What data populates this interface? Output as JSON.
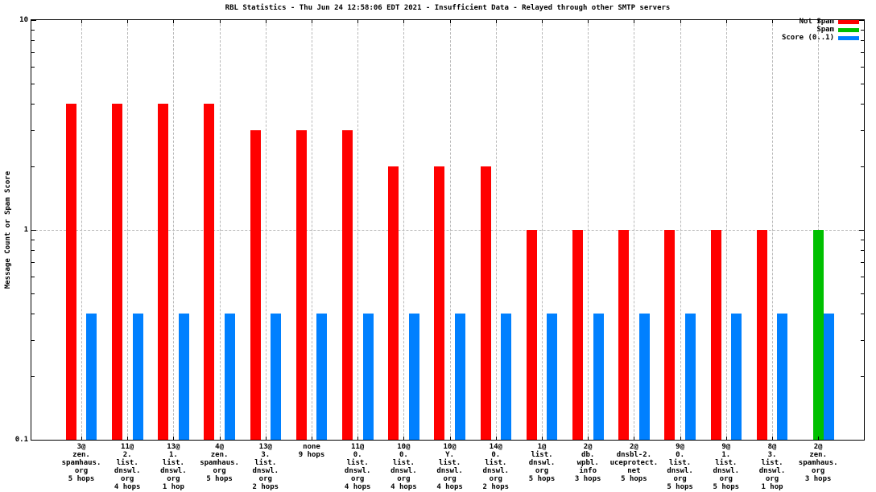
{
  "chart_data": {
    "type": "bar",
    "title": "RBL Statistics - Thu Jun 24 12:58:06 EDT 2021 - Insufficient Data - Relayed through other SMTP servers",
    "ylabel": "Message Count or Spam Score",
    "xlabel": "",
    "yscale": "log",
    "ylim": [
      0.1,
      10
    ],
    "yticks": [
      {
        "value": 0.1,
        "label": "0.1"
      },
      {
        "value": 1,
        "label": "1"
      },
      {
        "value": 10,
        "label": "10"
      }
    ],
    "grid": {
      "horizontal_dashed_at": 1,
      "vertical_dashed": "at each category",
      "color": "#b9b9b9"
    },
    "legend_position": "top-right-inside",
    "categories": [
      [
        "3@",
        "zen.",
        "spamhaus.",
        "org",
        "5 hops"
      ],
      [
        "11@",
        "2.",
        "list.",
        "dnswl.",
        "org",
        "4 hops"
      ],
      [
        "13@",
        "1.",
        "list.",
        "dnswl.",
        "org",
        "1 hop"
      ],
      [
        "4@",
        "zen.",
        "spamhaus.",
        "org",
        "5 hops"
      ],
      [
        "13@",
        "3.",
        "list.",
        "dnswl.",
        "org",
        "2 hops"
      ],
      [
        "none",
        "9 hops"
      ],
      [
        "11@",
        "0.",
        "list.",
        "dnswl.",
        "org",
        "4 hops"
      ],
      [
        "10@",
        "0.",
        "list.",
        "dnswl.",
        "org",
        "4 hops"
      ],
      [
        "10@",
        "Y.",
        "list.",
        "dnswl.",
        "org",
        "4 hops"
      ],
      [
        "14@",
        "0.",
        "list.",
        "dnswl.",
        "org",
        "2 hops"
      ],
      [
        "1@",
        "list.",
        "dnswl.",
        "org",
        "5 hops"
      ],
      [
        "2@",
        "db.",
        "wpbl.",
        "info",
        "3 hops"
      ],
      [
        "2@",
        "dnsbl-2.",
        "uceprotect.",
        "net",
        "5 hops"
      ],
      [
        "9@",
        "0.",
        "list.",
        "dnswl.",
        "org",
        "5 hops"
      ],
      [
        "9@",
        "1.",
        "list.",
        "dnswl.",
        "org",
        "5 hops"
      ],
      [
        "8@",
        "3.",
        "list.",
        "dnswl.",
        "org",
        "1 hop"
      ],
      [
        "2@",
        "zen.",
        "spamhaus.",
        "org",
        "3 hops"
      ]
    ],
    "series": [
      {
        "name": "Not Spam",
        "color": "#ff0000",
        "values": [
          4,
          4,
          4,
          4,
          3,
          3,
          3,
          2,
          2,
          2,
          1,
          1,
          1,
          1,
          1,
          1,
          0
        ]
      },
      {
        "name": "Spam",
        "color": "#00c000",
        "values": [
          0,
          0,
          0,
          0,
          0,
          0,
          0,
          0,
          0,
          0,
          0,
          0,
          0,
          0,
          0,
          0,
          1
        ]
      },
      {
        "name": "Score (0..1)",
        "color": "#0080ff",
        "values": [
          0.4,
          0.4,
          0.4,
          0.4,
          0.4,
          0.4,
          0.4,
          0.4,
          0.4,
          0.4,
          0.4,
          0.4,
          0.4,
          0.4,
          0.4,
          0.4,
          0.4
        ]
      }
    ]
  }
}
